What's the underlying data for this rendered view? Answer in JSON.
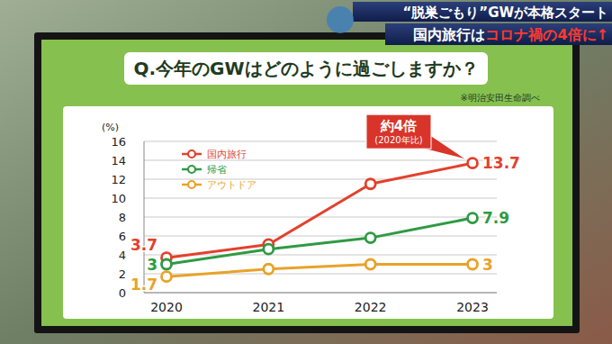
{
  "chart_data": {
    "type": "line",
    "headline": {
      "line1": "“脱巣ごもり”GWが本格スタート",
      "line2": "国内旅行は",
      "line2_highlight": "コロナ禍の4倍に↑"
    },
    "title": "Q.今年のGWはどのように過ごしますか？",
    "source": "※明治安田生命調べ",
    "y_label": "(%)",
    "categories": [
      "2020",
      "2021",
      "2022",
      "2023"
    ],
    "series": [
      {
        "name": "国内旅行",
        "color": "#e2412c",
        "marker": "circle",
        "line_style": "solid",
        "values": [
          3.7,
          5.1,
          11.5,
          13.7
        ],
        "value_labels": [
          "3.7",
          null,
          null,
          "13.7"
        ]
      },
      {
        "name": "帰省",
        "color": "#2f9a43",
        "marker": "circle",
        "line_style": "solid",
        "values": [
          3,
          4.6,
          5.8,
          7.9
        ],
        "value_labels": [
          "3",
          null,
          null,
          "7.9"
        ]
      },
      {
        "name": "アウトドア",
        "color": "#e8a22a",
        "marker": "circle",
        "line_style": "solid",
        "values": [
          1.7,
          2.5,
          3.0,
          3
        ],
        "value_labels": [
          "1.7",
          null,
          null,
          "3"
        ]
      }
    ],
    "annotations": [
      {
        "text": "約4倍"
      },
      {
        "text": "(2020年比)"
      }
    ],
    "ylim": [
      0,
      16
    ],
    "yticks": [
      0,
      2,
      4,
      6,
      8,
      10,
      12,
      14,
      16
    ],
    "grid": true,
    "legend": "upper left",
    "data_labels": true
  }
}
